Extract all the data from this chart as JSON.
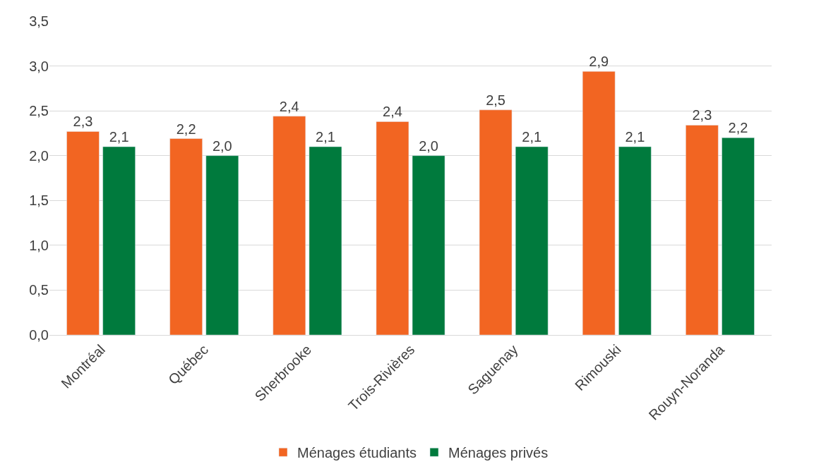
{
  "chart_data": {
    "type": "bar",
    "categories": [
      "Montréal",
      "Québec",
      "Sherbrooke",
      "Trois-Rivières",
      "Saguenay",
      "Rimouski",
      "Rouyn-Noranda"
    ],
    "series": [
      {
        "name": "Ménages étudiants",
        "color": "#f26522",
        "values": [
          2.27,
          2.19,
          2.44,
          2.38,
          2.51,
          2.94,
          2.34
        ],
        "value_labels": [
          "2,3",
          "2,2",
          "2,4",
          "2,4",
          "2,5",
          "2,9",
          "2,3"
        ]
      },
      {
        "name": "Ménages privés",
        "color": "#007a3d",
        "values": [
          2.1,
          2.0,
          2.1,
          2.0,
          2.1,
          2.1,
          2.2
        ],
        "value_labels": [
          "2,1",
          "2,0",
          "2,1",
          "2,0",
          "2,1",
          "2,1",
          "2,2"
        ]
      }
    ],
    "ylim": [
      0,
      3.5
    ],
    "yticks": [
      {
        "value": 0,
        "label": "0,0"
      },
      {
        "value": 0.5,
        "label": "0,5"
      },
      {
        "value": 1,
        "label": "1,0"
      },
      {
        "value": 1.5,
        "label": "1,5"
      },
      {
        "value": 2,
        "label": "2,0"
      },
      {
        "value": 2.5,
        "label": "2,5"
      },
      {
        "value": 3,
        "label": "3,0"
      },
      {
        "value": 3.5,
        "label": "3,5"
      }
    ],
    "grid": "y",
    "legend": "bottom"
  }
}
